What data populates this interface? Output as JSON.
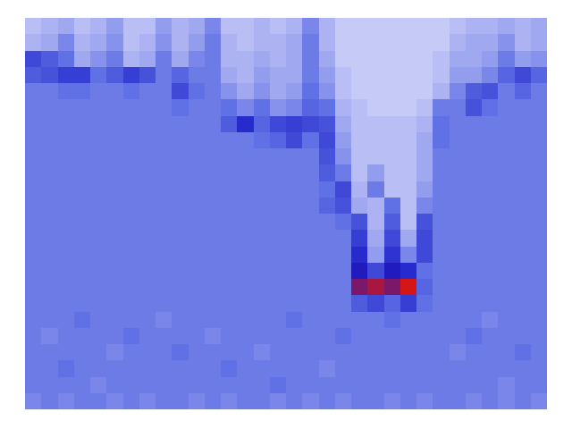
{
  "chart_data": {
    "type": "heatmap",
    "tick_labels": false,
    "values": [
      [
        0.4,
        0.5,
        0.6,
        0.4,
        0.5,
        0.7,
        0.4,
        0.4,
        0.7,
        0.5,
        0.6,
        0.9,
        0.4,
        0.4,
        0.5,
        0.4,
        0.5,
        0.9,
        0.5,
        0.3,
        0.3,
        0.3,
        0.3,
        0.3,
        0.3,
        0.3,
        0.4,
        0.5,
        0.5,
        0.6,
        0.5,
        0.6
      ],
      [
        0.5,
        0.6,
        0.9,
        0.5,
        0.6,
        0.8,
        0.4,
        0.5,
        0.8,
        0.5,
        0.7,
        1.0,
        0.5,
        0.4,
        0.5,
        0.5,
        0.6,
        1.0,
        0.5,
        0.3,
        0.3,
        0.3,
        0.3,
        0.3,
        0.3,
        0.3,
        0.5,
        0.6,
        0.6,
        0.8,
        0.5,
        0.6
      ],
      [
        1.5,
        1.3,
        1.1,
        0.6,
        0.8,
        1.0,
        0.5,
        0.6,
        1.0,
        0.6,
        0.9,
        1.0,
        0.5,
        0.5,
        0.6,
        0.5,
        0.6,
        1.0,
        0.6,
        0.3,
        0.3,
        0.3,
        0.3,
        0.3,
        0.3,
        0.4,
        0.6,
        0.6,
        0.7,
        1.0,
        0.7,
        0.8
      ],
      [
        1.3,
        1.4,
        1.6,
        1.6,
        1.1,
        1.3,
        1.6,
        1.4,
        1.0,
        1.2,
        1.0,
        1.0,
        0.6,
        0.5,
        0.7,
        0.6,
        0.6,
        1.0,
        0.7,
        0.4,
        0.3,
        0.3,
        0.3,
        0.3,
        0.3,
        0.4,
        0.7,
        0.7,
        0.9,
        1.2,
        1.5,
        1.2
      ],
      [
        1.0,
        1.0,
        1.1,
        1.1,
        1.0,
        1.0,
        1.1,
        1.0,
        1.0,
        1.5,
        1.1,
        1.0,
        0.8,
        0.6,
        0.8,
        0.6,
        0.7,
        1.1,
        0.8,
        0.4,
        0.3,
        0.3,
        0.3,
        0.3,
        0.3,
        0.5,
        0.9,
        1.3,
        1.4,
        1.0,
        1.2,
        1.0
      ],
      [
        1.0,
        1.0,
        1.0,
        1.0,
        1.0,
        1.0,
        1.0,
        1.0,
        1.0,
        1.1,
        1.0,
        1.0,
        1.1,
        0.9,
        1.1,
        0.8,
        0.9,
        1.2,
        1.1,
        0.5,
        0.4,
        0.3,
        0.3,
        0.3,
        0.4,
        1.0,
        1.0,
        1.4,
        1.1,
        1.0,
        1.0,
        1.0
      ],
      [
        1.0,
        1.0,
        1.0,
        1.0,
        1.0,
        1.0,
        1.0,
        1.0,
        1.0,
        1.0,
        1.0,
        1.0,
        1.3,
        1.8,
        1.2,
        1.5,
        1.6,
        1.5,
        1.4,
        0.6,
        0.4,
        0.4,
        0.4,
        0.4,
        0.5,
        1.1,
        1.0,
        1.0,
        1.0,
        1.0,
        1.0,
        1.0
      ],
      [
        1.0,
        1.0,
        1.0,
        1.0,
        1.0,
        1.0,
        1.0,
        1.0,
        1.0,
        1.0,
        1.0,
        1.0,
        1.0,
        1.0,
        1.1,
        1.2,
        1.5,
        1.1,
        1.5,
        0.7,
        0.4,
        0.4,
        0.4,
        0.4,
        0.6,
        1.1,
        1.0,
        1.0,
        1.0,
        1.0,
        1.0,
        1.0
      ],
      [
        1.0,
        1.0,
        1.0,
        1.0,
        1.0,
        1.0,
        1.0,
        1.0,
        1.0,
        1.0,
        1.0,
        1.0,
        1.0,
        1.0,
        1.0,
        1.0,
        1.0,
        1.0,
        1.4,
        0.8,
        0.4,
        0.4,
        0.4,
        0.4,
        0.6,
        1.0,
        1.0,
        1.0,
        1.0,
        1.0,
        1.0,
        1.0
      ],
      [
        1.0,
        1.0,
        1.0,
        1.0,
        1.0,
        1.0,
        1.0,
        1.0,
        1.0,
        1.0,
        1.0,
        1.0,
        1.0,
        1.0,
        1.0,
        1.0,
        1.0,
        1.0,
        1.3,
        1.0,
        0.4,
        0.7,
        0.4,
        0.4,
        0.6,
        1.0,
        1.0,
        1.0,
        1.0,
        1.0,
        1.0,
        1.0
      ],
      [
        1.0,
        1.0,
        1.0,
        1.0,
        1.0,
        1.0,
        1.0,
        1.0,
        1.0,
        1.0,
        1.0,
        1.0,
        1.0,
        1.0,
        1.0,
        1.0,
        1.0,
        1.0,
        1.1,
        1.5,
        0.5,
        1.0,
        0.4,
        0.4,
        0.7,
        1.0,
        1.0,
        1.0,
        1.0,
        1.0,
        1.0,
        1.0
      ],
      [
        1.0,
        1.0,
        1.0,
        1.0,
        1.0,
        1.0,
        1.0,
        1.0,
        1.0,
        1.0,
        1.0,
        1.0,
        1.0,
        1.0,
        1.0,
        1.0,
        1.0,
        1.0,
        1.2,
        1.4,
        0.6,
        0.5,
        1.1,
        0.4,
        0.9,
        1.0,
        1.0,
        1.0,
        1.0,
        1.0,
        1.0,
        1.0
      ],
      [
        1.0,
        1.0,
        1.0,
        1.0,
        1.0,
        1.0,
        1.0,
        1.0,
        1.0,
        1.0,
        1.0,
        1.0,
        1.0,
        1.0,
        1.0,
        1.0,
        1.0,
        1.0,
        1.0,
        1.1,
        1.4,
        0.5,
        1.3,
        0.4,
        1.4,
        1.0,
        1.0,
        1.0,
        1.0,
        1.0,
        1.0,
        1.0
      ],
      [
        1.0,
        1.0,
        1.0,
        1.0,
        1.0,
        1.0,
        1.0,
        1.0,
        1.0,
        1.0,
        1.0,
        1.0,
        1.0,
        1.0,
        1.0,
        1.0,
        1.0,
        1.0,
        1.0,
        1.0,
        1.6,
        0.6,
        1.5,
        0.6,
        1.5,
        1.0,
        1.0,
        1.0,
        1.0,
        1.0,
        1.0,
        1.0
      ],
      [
        1.0,
        1.0,
        1.0,
        1.0,
        1.0,
        1.0,
        1.0,
        1.0,
        1.0,
        1.0,
        1.0,
        1.0,
        1.0,
        1.0,
        1.0,
        1.0,
        1.0,
        1.0,
        1.0,
        1.0,
        1.8,
        0.7,
        1.7,
        0.9,
        1.5,
        1.0,
        1.0,
        1.0,
        1.0,
        1.0,
        1.0,
        1.0
      ],
      [
        1.0,
        1.0,
        1.0,
        1.0,
        1.0,
        1.0,
        1.0,
        1.0,
        1.0,
        1.0,
        1.0,
        1.0,
        1.0,
        1.0,
        1.0,
        1.0,
        1.0,
        1.0,
        1.0,
        1.0,
        2.0,
        1.5,
        2.0,
        1.8,
        1.1,
        1.0,
        1.0,
        1.0,
        1.0,
        1.0,
        1.0,
        1.0
      ],
      [
        1.0,
        1.0,
        1.0,
        1.0,
        1.0,
        1.0,
        1.0,
        1.0,
        1.0,
        1.0,
        1.0,
        1.0,
        1.0,
        1.0,
        1.0,
        1.0,
        1.0,
        1.0,
        1.0,
        1.0,
        2.4,
        2.6,
        2.4,
        2.8,
        1.2,
        1.0,
        1.0,
        1.0,
        1.0,
        1.0,
        1.0,
        1.0
      ],
      [
        1.0,
        1.0,
        1.0,
        1.0,
        1.0,
        1.0,
        1.0,
        1.0,
        1.0,
        1.0,
        1.0,
        1.0,
        1.0,
        1.0,
        1.0,
        1.0,
        1.0,
        1.0,
        1.0,
        1.0,
        1.3,
        1.5,
        1.2,
        1.6,
        1.1,
        1.0,
        1.0,
        1.0,
        1.0,
        1.0,
        1.0,
        1.0
      ],
      [
        1.0,
        1.0,
        1.0,
        1.1,
        1.0,
        1.0,
        1.0,
        1.0,
        0.9,
        1.0,
        1.0,
        1.0,
        1.0,
        1.0,
        1.0,
        1.0,
        1.1,
        1.0,
        1.0,
        1.0,
        1.0,
        1.0,
        1.1,
        1.0,
        1.0,
        1.0,
        1.0,
        1.0,
        0.9,
        1.0,
        1.0,
        1.0
      ],
      [
        1.0,
        0.9,
        1.0,
        1.0,
        1.0,
        1.0,
        1.1,
        1.0,
        1.0,
        1.0,
        1.0,
        0.9,
        1.0,
        1.0,
        1.0,
        1.0,
        1.0,
        1.0,
        1.0,
        1.1,
        1.0,
        1.0,
        1.0,
        1.0,
        1.0,
        1.0,
        1.0,
        1.1,
        1.0,
        1.0,
        1.0,
        1.0
      ],
      [
        1.0,
        1.0,
        1.0,
        1.0,
        1.0,
        0.9,
        1.0,
        1.0,
        1.0,
        1.1,
        1.0,
        1.0,
        1.0,
        1.0,
        0.9,
        1.0,
        1.0,
        1.0,
        1.0,
        1.0,
        1.0,
        1.0,
        1.0,
        1.0,
        1.0,
        1.0,
        0.9,
        1.0,
        1.0,
        1.0,
        1.1,
        1.0
      ],
      [
        1.0,
        1.0,
        1.1,
        1.0,
        1.0,
        1.0,
        1.0,
        1.0,
        1.0,
        1.0,
        1.0,
        1.0,
        1.1,
        1.0,
        1.0,
        1.0,
        1.0,
        1.0,
        0.9,
        1.0,
        1.0,
        1.0,
        1.0,
        1.0,
        1.0,
        1.0,
        1.0,
        1.0,
        1.0,
        1.0,
        1.0,
        1.0
      ],
      [
        1.0,
        1.0,
        1.0,
        1.0,
        0.9,
        1.0,
        1.0,
        1.0,
        1.0,
        1.0,
        1.0,
        1.0,
        1.0,
        1.0,
        1.0,
        1.1,
        1.0,
        1.0,
        1.0,
        1.0,
        1.0,
        1.0,
        1.0,
        1.0,
        1.0,
        1.0,
        1.0,
        1.0,
        1.0,
        0.9,
        1.0,
        1.0
      ],
      [
        0.9,
        1.0,
        0.9,
        1.0,
        1.0,
        0.9,
        1.0,
        0.9,
        1.0,
        1.0,
        0.9,
        1.0,
        0.9,
        1.0,
        1.0,
        0.9,
        1.0,
        0.9,
        1.0,
        0.9,
        1.0,
        1.0,
        0.9,
        1.0,
        0.9,
        1.0,
        1.0,
        0.9,
        1.0,
        0.9,
        1.0,
        0.9
      ]
    ]
  }
}
